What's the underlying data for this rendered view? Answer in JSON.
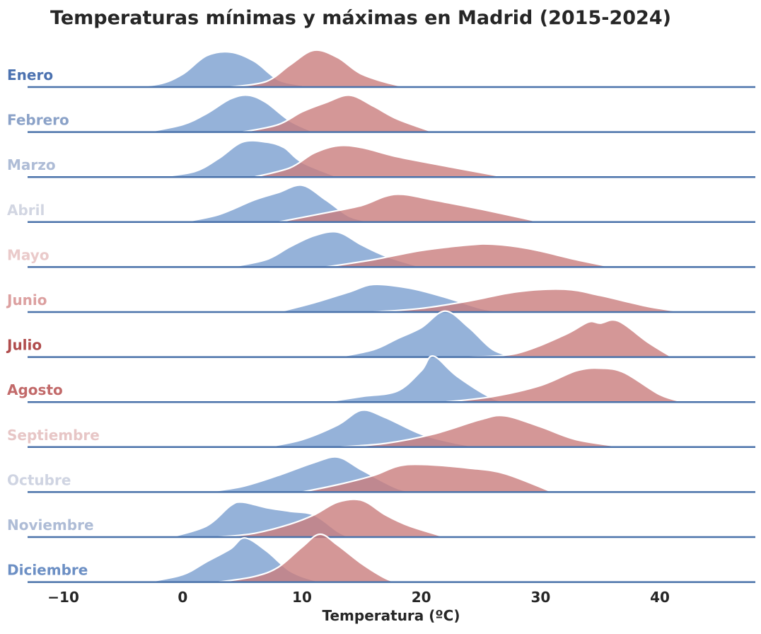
{
  "chart_data": {
    "type": "ridgeline-density",
    "title": "Temperaturas mínimas y máximas en Madrid (2015-2024)",
    "xlabel": "Temperatura (ºC)",
    "xlim": [
      -13,
      48
    ],
    "xticks": [
      -10,
      0,
      10,
      20,
      30,
      40
    ],
    "xtick_labels": [
      "−10",
      "0",
      "10",
      "20",
      "30",
      "40"
    ],
    "series_colors": {
      "min": "#7b9fcf",
      "max": "#c97d7d"
    },
    "baseline_color": "#4a72aa",
    "rows": [
      {
        "label": "Enero",
        "label_color": "#4c72b0",
        "min": [
          [
            -5,
            0.0
          ],
          [
            -2,
            0.08
          ],
          [
            0,
            0.35
          ],
          [
            2,
            0.85
          ],
          [
            4,
            0.95
          ],
          [
            6,
            0.7
          ],
          [
            8,
            0.2
          ],
          [
            10,
            0.05
          ]
        ],
        "max": [
          [
            4,
            0.0
          ],
          [
            7,
            0.15
          ],
          [
            9,
            0.6
          ],
          [
            11,
            1.0
          ],
          [
            13,
            0.8
          ],
          [
            15,
            0.35
          ],
          [
            18,
            0.05
          ],
          [
            20,
            0.0
          ]
        ]
      },
      {
        "label": "Febrero",
        "label_color": "#8ba2c8",
        "min": [
          [
            -3,
            0.0
          ],
          [
            0,
            0.2
          ],
          [
            2,
            0.5
          ],
          [
            4,
            0.9
          ],
          [
            5.5,
            1.0
          ],
          [
            7,
            0.8
          ],
          [
            9,
            0.3
          ],
          [
            11,
            0.0
          ]
        ],
        "max": [
          [
            5,
            0.0
          ],
          [
            8,
            0.2
          ],
          [
            10,
            0.55
          ],
          [
            12,
            0.8
          ],
          [
            14,
            1.0
          ],
          [
            16,
            0.7
          ],
          [
            18,
            0.35
          ],
          [
            21,
            0.0
          ]
        ]
      },
      {
        "label": "Marzo",
        "label_color": "#aebcd6",
        "min": [
          [
            -2,
            0.0
          ],
          [
            1,
            0.15
          ],
          [
            3,
            0.5
          ],
          [
            5,
            0.95
          ],
          [
            7,
            0.95
          ],
          [
            8.5,
            0.8
          ],
          [
            10,
            0.4
          ],
          [
            13,
            0.0
          ]
        ],
        "max": [
          [
            6,
            0.0
          ],
          [
            9,
            0.25
          ],
          [
            11,
            0.65
          ],
          [
            13,
            0.85
          ],
          [
            15,
            0.8
          ],
          [
            18,
            0.55
          ],
          [
            22,
            0.3
          ],
          [
            27,
            0.0
          ]
        ]
      },
      {
        "label": "Abril",
        "label_color": "#d2d6e2",
        "min": [
          [
            0,
            0.0
          ],
          [
            3,
            0.2
          ],
          [
            6,
            0.6
          ],
          [
            8,
            0.8
          ],
          [
            10,
            1.0
          ],
          [
            12,
            0.6
          ],
          [
            14,
            0.15
          ],
          [
            16,
            0.0
          ]
        ],
        "max": [
          [
            8,
            0.0
          ],
          [
            12,
            0.25
          ],
          [
            15,
            0.45
          ],
          [
            17,
            0.7
          ],
          [
            18.5,
            0.75
          ],
          [
            21,
            0.6
          ],
          [
            25,
            0.35
          ],
          [
            30,
            0.0
          ]
        ]
      },
      {
        "label": "Mayo",
        "label_color": "#eacaca",
        "min": [
          [
            4,
            0.0
          ],
          [
            7,
            0.2
          ],
          [
            9,
            0.55
          ],
          [
            11,
            0.85
          ],
          [
            13,
            0.95
          ],
          [
            15,
            0.6
          ],
          [
            17,
            0.3
          ],
          [
            20,
            0.0
          ]
        ],
        "max": [
          [
            12,
            0.0
          ],
          [
            16,
            0.2
          ],
          [
            20,
            0.45
          ],
          [
            24,
            0.6
          ],
          [
            26,
            0.62
          ],
          [
            29,
            0.5
          ],
          [
            33,
            0.2
          ],
          [
            36,
            0.0
          ]
        ]
      },
      {
        "label": "Junio",
        "label_color": "#dca0a0",
        "min": [
          [
            8,
            0.0
          ],
          [
            11,
            0.25
          ],
          [
            14,
            0.55
          ],
          [
            16,
            0.75
          ],
          [
            19,
            0.65
          ],
          [
            22,
            0.4
          ],
          [
            25,
            0.1
          ],
          [
            27,
            0.0
          ]
        ],
        "max": [
          [
            16,
            0.0
          ],
          [
            20,
            0.1
          ],
          [
            24,
            0.3
          ],
          [
            28,
            0.55
          ],
          [
            32,
            0.62
          ],
          [
            35,
            0.45
          ],
          [
            39,
            0.15
          ],
          [
            42,
            0.0
          ]
        ]
      },
      {
        "label": "Julio",
        "label_color": "#b04c4c",
        "min": [
          [
            13,
            0.0
          ],
          [
            16,
            0.2
          ],
          [
            18,
            0.5
          ],
          [
            20,
            0.8
          ],
          [
            22,
            1.25
          ],
          [
            24,
            0.8
          ],
          [
            26,
            0.2
          ],
          [
            28,
            0.0
          ]
        ],
        "max": [
          [
            24,
            0.0
          ],
          [
            28,
            0.1
          ],
          [
            32,
            0.6
          ],
          [
            34,
            0.95
          ],
          [
            35,
            0.92
          ],
          [
            36.5,
            0.98
          ],
          [
            39,
            0.4
          ],
          [
            41,
            0.0
          ]
        ]
      },
      {
        "label": "Agosto",
        "label_color": "#c26a6a",
        "min": [
          [
            12,
            0.0
          ],
          [
            15,
            0.15
          ],
          [
            18,
            0.3
          ],
          [
            20,
            0.85
          ],
          [
            21,
            1.25
          ],
          [
            23,
            0.7
          ],
          [
            26,
            0.1
          ],
          [
            28,
            0.0
          ]
        ],
        "max": [
          [
            22,
            0.0
          ],
          [
            26,
            0.15
          ],
          [
            30,
            0.45
          ],
          [
            33,
            0.85
          ],
          [
            35,
            0.92
          ],
          [
            37,
            0.8
          ],
          [
            40,
            0.2
          ],
          [
            42,
            0.0
          ]
        ]
      },
      {
        "label": "Septiembre",
        "label_color": "#e7c6c6",
        "min": [
          [
            7,
            0.0
          ],
          [
            10,
            0.2
          ],
          [
            13,
            0.6
          ],
          [
            15,
            1.0
          ],
          [
            17,
            0.8
          ],
          [
            20,
            0.35
          ],
          [
            23,
            0.1
          ],
          [
            25,
            0.0
          ]
        ],
        "max": [
          [
            13,
            0.0
          ],
          [
            17,
            0.1
          ],
          [
            21,
            0.35
          ],
          [
            25,
            0.75
          ],
          [
            27,
            0.85
          ],
          [
            30,
            0.55
          ],
          [
            33,
            0.2
          ],
          [
            37,
            0.0
          ]
        ]
      },
      {
        "label": "Octubre",
        "label_color": "#cfd4e2",
        "min": [
          [
            2,
            0.0
          ],
          [
            5,
            0.15
          ],
          [
            8,
            0.45
          ],
          [
            11,
            0.8
          ],
          [
            13,
            0.95
          ],
          [
            15,
            0.6
          ],
          [
            18,
            0.1
          ],
          [
            20,
            0.0
          ]
        ],
        "max": [
          [
            10,
            0.0
          ],
          [
            13,
            0.2
          ],
          [
            16,
            0.45
          ],
          [
            18,
            0.7
          ],
          [
            20,
            0.75
          ],
          [
            24,
            0.65
          ],
          [
            27,
            0.5
          ],
          [
            31,
            0.0
          ]
        ]
      },
      {
        "label": "Noviembre",
        "label_color": "#aebcd6",
        "min": [
          [
            -1,
            0.0
          ],
          [
            2,
            0.3
          ],
          [
            4,
            0.85
          ],
          [
            5,
            0.95
          ],
          [
            7,
            0.8
          ],
          [
            9,
            0.7
          ],
          [
            11,
            0.6
          ],
          [
            13,
            0.15
          ],
          [
            14,
            0.0
          ]
        ],
        "max": [
          [
            3,
            0.0
          ],
          [
            6,
            0.1
          ],
          [
            9,
            0.35
          ],
          [
            11,
            0.6
          ],
          [
            13,
            0.95
          ],
          [
            15,
            1.0
          ],
          [
            17,
            0.6
          ],
          [
            19,
            0.3
          ],
          [
            22,
            0.0
          ]
        ]
      },
      {
        "label": "Diciembre",
        "label_color": "#6c8fc4",
        "min": [
          [
            -3,
            0.0
          ],
          [
            0,
            0.2
          ],
          [
            2,
            0.55
          ],
          [
            4,
            0.9
          ],
          [
            5.2,
            1.2
          ],
          [
            7,
            0.85
          ],
          [
            9,
            0.3
          ],
          [
            11,
            0.05
          ],
          [
            12,
            0.0
          ]
        ],
        "max": [
          [
            3,
            0.0
          ],
          [
            6,
            0.15
          ],
          [
            8,
            0.4
          ],
          [
            10,
            0.95
          ],
          [
            11.5,
            1.3
          ],
          [
            13,
            1.0
          ],
          [
            15,
            0.5
          ],
          [
            17,
            0.1
          ],
          [
            18,
            0.0
          ]
        ]
      }
    ]
  }
}
